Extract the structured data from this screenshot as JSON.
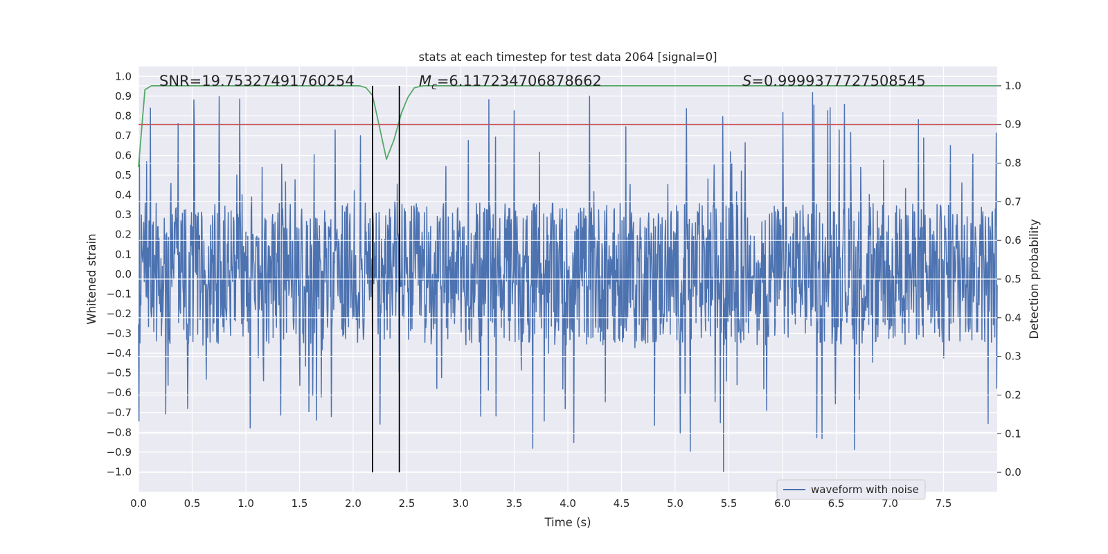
{
  "chart_data": {
    "type": "line",
    "title": "stats at each timestep for test data 2064 [signal=0]",
    "xlabel": "Time (s)",
    "ylabel": "Whitened strain",
    "y2label": "Detection probability",
    "xlim": [
      0,
      8
    ],
    "ylim": [
      -1.1,
      1.05
    ],
    "y2lim": [
      -0.05,
      1.05
    ],
    "xticks": [
      0.0,
      0.5,
      1.0,
      1.5,
      2.0,
      2.5,
      3.0,
      3.5,
      4.0,
      4.5,
      5.0,
      5.5,
      6.0,
      6.5,
      7.0,
      7.5
    ],
    "yticks": [
      -1.0,
      -0.9,
      -0.8,
      -0.7,
      -0.6,
      -0.5,
      -0.4,
      -0.3,
      -0.2,
      -0.1,
      0.0,
      0.1,
      0.2,
      0.3,
      0.4,
      0.5,
      0.6,
      0.7,
      0.8,
      0.9,
      1.0
    ],
    "y2ticks": [
      0.0,
      0.1,
      0.2,
      0.3,
      0.4,
      0.5,
      0.6,
      0.7,
      0.8,
      0.9,
      1.0
    ],
    "grid": true,
    "legend": {
      "entries": [
        "waveform with noise"
      ],
      "placement": "lower-right"
    },
    "annotations": {
      "snr": "SNR=19.75327491760254",
      "mc_symbol": "M",
      "mc_sub": "c",
      "mc_value": "=6.117234706878662",
      "s_symbol": "S",
      "s_value": "=0.9999377727508545"
    },
    "threshold": {
      "y2": 0.9,
      "color": "#c44e52"
    },
    "vlines": [
      2.18,
      2.43
    ],
    "waveform": {
      "name": "waveform with noise",
      "color": "#4c72b0",
      "n_samples": 1800,
      "typical_range": [
        -0.35,
        0.36
      ],
      "max": 0.92,
      "min": -1.0
    },
    "probability": {
      "name": "detection probability",
      "color": "#55a868",
      "x": [
        0.0,
        0.06,
        0.12,
        0.3,
        1.0,
        2.0,
        2.06,
        2.12,
        2.18,
        2.24,
        2.31,
        2.38,
        2.45,
        2.51,
        2.57,
        2.65,
        3.0,
        4.0,
        5.0,
        6.0,
        7.0,
        8.0
      ],
      "y": [
        0.79,
        0.99,
        1.0,
        1.0,
        1.0,
        1.0,
        1.0,
        0.995,
        0.975,
        0.9,
        0.81,
        0.86,
        0.93,
        0.97,
        0.995,
        1.0,
        1.0,
        1.0,
        1.0,
        1.0,
        1.0,
        1.0
      ]
    }
  }
}
